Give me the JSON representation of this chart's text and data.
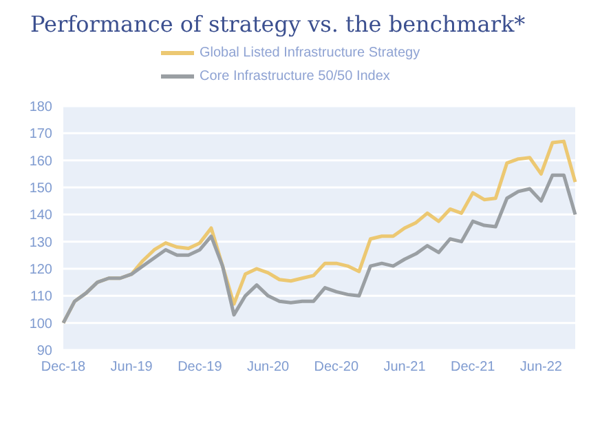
{
  "chart_data": {
    "type": "line",
    "title": "Performance of strategy vs. the benchmark*",
    "categories": [
      "Dec-18",
      null,
      null,
      null,
      null,
      null,
      "Jun-19",
      null,
      null,
      null,
      null,
      null,
      "Dec-19",
      null,
      null,
      null,
      null,
      null,
      "Jun-20",
      null,
      null,
      null,
      null,
      null,
      "Dec-20",
      null,
      null,
      null,
      null,
      null,
      "Jun-21",
      null,
      null,
      null,
      null,
      null,
      "Dec-21",
      null,
      null,
      null,
      null,
      null,
      "Jun-22",
      null,
      null,
      null
    ],
    "series": [
      {
        "name": "Global Listed Infrastructure Strategy",
        "color": "#ecc872",
        "values": [
          100,
          108,
          111,
          115,
          116.5,
          116.5,
          118,
          123,
          127,
          129.5,
          128,
          127.5,
          129.5,
          135,
          121,
          107,
          118,
          120,
          118.5,
          116,
          115.5,
          116.5,
          117.5,
          122,
          122,
          121,
          119,
          131,
          132,
          132,
          135,
          137,
          140.5,
          137.5,
          142,
          140.5,
          148,
          145.5,
          146,
          159,
          160.5,
          161,
          155,
          166.5,
          167,
          152
        ]
      },
      {
        "name": "Core Infrastructure 50/50 Index",
        "color": "#9a9fa3",
        "values": [
          100,
          108,
          111,
          115,
          116.5,
          116.5,
          118,
          121,
          124,
          127,
          125,
          125,
          127,
          132,
          121,
          103,
          110,
          114,
          110,
          108,
          107.5,
          108,
          108,
          113,
          111.5,
          110.5,
          110,
          121,
          122,
          121,
          123.5,
          125.5,
          128.5,
          126,
          131,
          130,
          137.5,
          136,
          135.5,
          146,
          148.5,
          149.5,
          145,
          154.5,
          154.5,
          140
        ]
      }
    ],
    "ylim": [
      90,
      180
    ],
    "yticks": [
      90,
      100,
      110,
      120,
      130,
      140,
      150,
      160,
      170,
      180
    ],
    "grid": "y",
    "legend": "top",
    "marker": "none",
    "line_style": "solid"
  }
}
